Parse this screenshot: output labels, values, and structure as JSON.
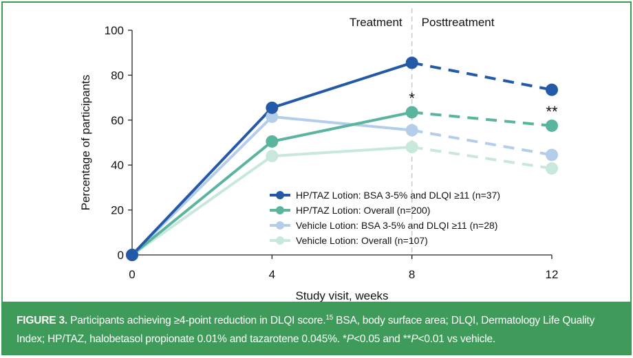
{
  "chart_data": {
    "type": "line",
    "x": [
      0,
      4,
      8,
      12
    ],
    "xlabel": "Study visit, weeks",
    "ylabel": "Percentage of participants",
    "xlim": [
      0,
      12
    ],
    "ylim": [
      0,
      100
    ],
    "x_ticks": [
      "0",
      "4",
      "8",
      "12"
    ],
    "y_ticks": [
      "0",
      "20",
      "40",
      "60",
      "80",
      "100"
    ],
    "phase_labels": {
      "left": "Treatment",
      "right": "Posttreatment"
    },
    "phase_boundary_x": 8,
    "legend_position": "lower-right",
    "series": [
      {
        "name": "HP/TAZ Lotion: BSA 3-5% and DLQI ≥11 (n=37)",
        "values": [
          0,
          65.5,
          85.5,
          73.5
        ],
        "color": "#2359a6"
      },
      {
        "name": "HP/TAZ Lotion: Overall (n=200)",
        "values": [
          0,
          50.5,
          63.5,
          57.5
        ],
        "color": "#5bb59e"
      },
      {
        "name": "Vehicle Lotion: BSA 3-5% and DLQI ≥11 (n=28)",
        "values": [
          0,
          61.5,
          55.5,
          44.5
        ],
        "color": "#b3cdea"
      },
      {
        "name": "Vehicle Lotion: Overall (n=107)",
        "values": [
          0,
          44.0,
          48.0,
          38.5
        ],
        "color": "#c8e8dc"
      }
    ],
    "annotations": [
      {
        "x": 8,
        "y": 63.5,
        "text": "*",
        "color": "#5bb59e"
      },
      {
        "x": 12,
        "y": 57.5,
        "text": "**",
        "color": "#5bb59e"
      }
    ]
  },
  "caption": {
    "lead": "FIGURE 3.",
    "text_a": " Participants achieving ≥4-point reduction in DLQI score.",
    "ref": "15",
    "text_b": " BSA, body surface area; DLQI, Dermatology Life Quality Index; HP/TAZ, halobetasol propionate 0.01% and tazarotene 0.045%. *",
    "p1": "P",
    "text_c": "<0.05 and **",
    "p2": "P",
    "text_d": "<0.01 vs vehicle."
  },
  "colors": {
    "caption_bg": "#3f9b5a",
    "border": "#3d9a55"
  }
}
